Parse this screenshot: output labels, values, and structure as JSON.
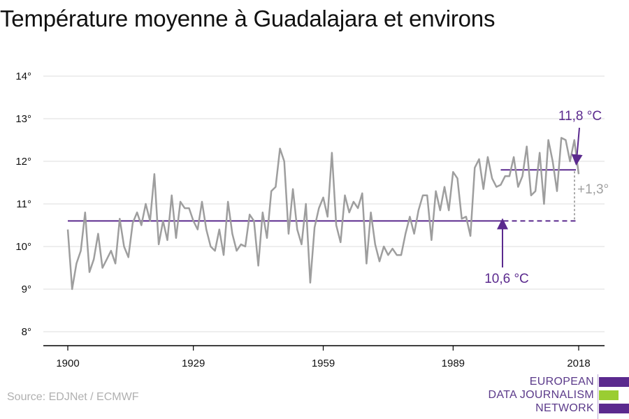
{
  "title": "Température moyenne à Guadalajara et environs",
  "source": "Source: EDJNet / ECMWF",
  "logo": {
    "line1": "EUROPEAN",
    "line2": "DATA JOURNALISM",
    "line3": "NETWORK"
  },
  "colors": {
    "line": "#9e9e9e",
    "accent": "#5b2a8e",
    "logo_green": "#9acd32",
    "grid": "#dddddd",
    "axis": "#000000",
    "text": "#111111"
  },
  "chart_data": {
    "type": "line",
    "title": "Température moyenne à Guadalajara et environs",
    "xlabel": "",
    "ylabel": "",
    "xlim": [
      1900,
      2018
    ],
    "ylim": [
      8,
      14
    ],
    "x_ticks": [
      "1900",
      "1929",
      "1959",
      "1989",
      "2018"
    ],
    "y_ticks": [
      "8°",
      "9°",
      "10°",
      "11°",
      "12°",
      "13°",
      "14°"
    ],
    "grid": true,
    "series": [
      {
        "name": "",
        "x": [
          1900,
          1901,
          1902,
          1903,
          1904,
          1905,
          1906,
          1907,
          1908,
          1909,
          1910,
          1911,
          1912,
          1913,
          1914,
          1915,
          1916,
          1917,
          1918,
          1919,
          1920,
          1921,
          1922,
          1923,
          1924,
          1925,
          1926,
          1927,
          1928,
          1929,
          1930,
          1931,
          1932,
          1933,
          1934,
          1935,
          1936,
          1937,
          1938,
          1939,
          1940,
          1941,
          1942,
          1943,
          1944,
          1945,
          1946,
          1947,
          1948,
          1949,
          1950,
          1951,
          1952,
          1953,
          1954,
          1955,
          1956,
          1957,
          1958,
          1959,
          1960,
          1961,
          1962,
          1963,
          1964,
          1965,
          1966,
          1967,
          1968,
          1969,
          1970,
          1971,
          1972,
          1973,
          1974,
          1975,
          1976,
          1977,
          1978,
          1979,
          1980,
          1981,
          1982,
          1983,
          1984,
          1985,
          1986,
          1987,
          1988,
          1989,
          1990,
          1991,
          1992,
          1993,
          1994,
          1995,
          1996,
          1997,
          1998,
          1999,
          2000,
          2001,
          2002,
          2003,
          2004,
          2005,
          2006,
          2007,
          2008,
          2009,
          2010,
          2011,
          2012,
          2013,
          2014,
          2015,
          2016,
          2017,
          2018
        ],
        "values": [
          10.4,
          9.0,
          9.6,
          9.9,
          10.8,
          9.4,
          9.7,
          10.3,
          9.5,
          9.7,
          9.9,
          9.6,
          10.65,
          10.0,
          9.75,
          10.55,
          10.8,
          10.5,
          11.0,
          10.6,
          11.7,
          10.05,
          10.6,
          10.15,
          11.2,
          10.2,
          11.05,
          10.9,
          10.9,
          10.6,
          10.4,
          11.05,
          10.4,
          10.0,
          9.9,
          10.4,
          9.8,
          11.05,
          10.3,
          9.9,
          10.05,
          10.0,
          10.75,
          10.6,
          9.55,
          10.8,
          10.2,
          11.3,
          11.4,
          12.3,
          12.0,
          10.3,
          11.35,
          10.4,
          10.05,
          11.0,
          9.15,
          10.45,
          10.9,
          11.15,
          10.7,
          12.2,
          10.5,
          10.1,
          11.2,
          10.8,
          11.05,
          10.9,
          11.25,
          9.6,
          10.8,
          10.05,
          9.65,
          10.0,
          9.8,
          9.95,
          9.8,
          9.8,
          10.3,
          10.7,
          10.3,
          10.85,
          11.2,
          11.2,
          10.15,
          11.3,
          10.85,
          11.4,
          10.85,
          11.75,
          11.6,
          10.65,
          10.7,
          10.25,
          11.85,
          12.05,
          11.35,
          12.1,
          11.6,
          11.4,
          11.45,
          11.65,
          11.65,
          12.1,
          11.4,
          11.65,
          12.35,
          11.2,
          11.3,
          12.2,
          11.0,
          12.5,
          12.0,
          11.3,
          12.55,
          12.5,
          12.0,
          12.5,
          11.7
        ]
      }
    ],
    "annotations": {
      "baseline_label": "10,6 °C",
      "baseline_value": 10.6,
      "baseline_x_range": [
        1900,
        2018
      ],
      "recent_label": "11,8 °C",
      "recent_value": 11.8,
      "recent_x_range": [
        2000,
        2018
      ],
      "diff_label": "+1,3°"
    }
  }
}
